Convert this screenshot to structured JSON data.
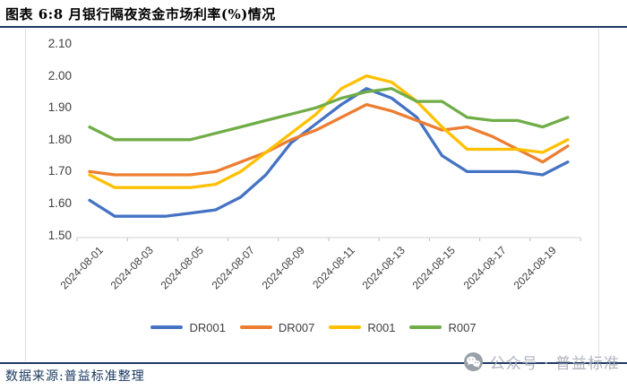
{
  "figure": {
    "title": "图表 6:8 月银行隔夜资金市场利率(%)情况",
    "source": "数据来源:普益标准整理",
    "watermark": "公众号 · 普益标准"
  },
  "colors": {
    "accent_navy": "#1F3864",
    "axis_text": "#404040",
    "axis_line": "#D9D9D9",
    "tick_mark": "#BFBFBF",
    "watermark_gray": "#AEB3BC"
  },
  "chart_data": {
    "type": "line",
    "title": "8月银行隔夜资金市场利率(%)",
    "x": [
      "2024-08-01",
      "2024-08-02",
      "2024-08-03",
      "2024-08-04",
      "2024-08-05",
      "2024-08-06",
      "2024-08-07",
      "2024-08-08",
      "2024-08-09",
      "2024-08-10",
      "2024-08-11",
      "2024-08-12",
      "2024-08-13",
      "2024-08-14",
      "2024-08-15",
      "2024-08-16",
      "2024-08-17",
      "2024-08-18",
      "2024-08-19",
      "2024-08-20"
    ],
    "x_tick_labels": [
      "2024-08-01",
      "2024-08-03",
      "2024-08-05",
      "2024-08-07",
      "2024-08-09",
      "2024-08-11",
      "2024-08-13",
      "2024-08-15",
      "2024-08-17",
      "2024-08-19"
    ],
    "y_ticks": [
      "2.10",
      "2.00",
      "1.90",
      "1.80",
      "1.70",
      "1.60",
      "1.50"
    ],
    "ylim": [
      1.5,
      2.1
    ],
    "grid": false,
    "legend_position": "bottom",
    "series": [
      {
        "name": "DR001",
        "color": "#4472C4",
        "values": [
          1.61,
          1.56,
          1.56,
          1.56,
          1.57,
          1.58,
          1.62,
          1.69,
          1.79,
          1.85,
          1.91,
          1.96,
          1.93,
          1.87,
          1.75,
          1.7,
          1.7,
          1.7,
          1.69,
          1.73
        ]
      },
      {
        "name": "DR007",
        "color": "#ED7D31",
        "values": [
          1.7,
          1.69,
          1.69,
          1.69,
          1.69,
          1.7,
          1.73,
          1.76,
          1.8,
          1.83,
          1.87,
          1.91,
          1.89,
          1.86,
          1.83,
          1.84,
          1.81,
          1.77,
          1.73,
          1.78
        ]
      },
      {
        "name": "R001",
        "color": "#FFC000",
        "values": [
          1.69,
          1.65,
          1.65,
          1.65,
          1.65,
          1.66,
          1.7,
          1.76,
          1.82,
          1.88,
          1.96,
          2.0,
          1.98,
          1.92,
          1.84,
          1.77,
          1.77,
          1.77,
          1.76,
          1.8
        ]
      },
      {
        "name": "R007",
        "color": "#70AD47",
        "values": [
          1.84,
          1.8,
          1.8,
          1.8,
          1.8,
          1.82,
          1.84,
          1.86,
          1.88,
          1.9,
          1.93,
          1.95,
          1.96,
          1.92,
          1.92,
          1.87,
          1.86,
          1.86,
          1.84,
          1.87
        ]
      }
    ]
  }
}
